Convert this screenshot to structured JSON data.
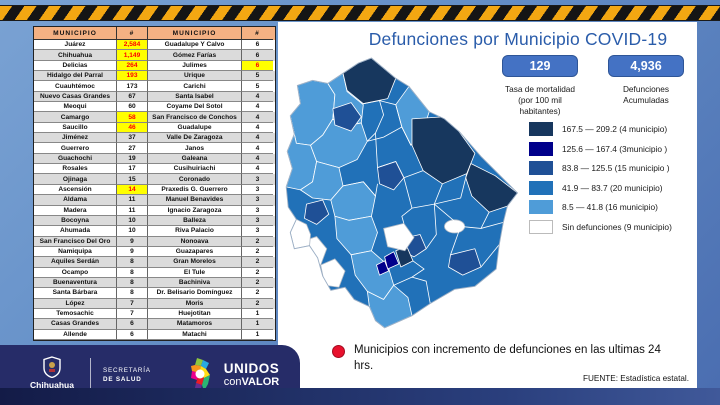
{
  "title": "Defunciones por Municipio COVID-19",
  "stats": {
    "mortality": {
      "value": "129",
      "label_line1": "Tasa de mortalidad",
      "label_line2": "(por 100 mil habitantes)"
    },
    "deaths": {
      "value": "4,936",
      "label_line1": "Defunciones",
      "label_line2": "Acumuladas"
    }
  },
  "legend": {
    "items": [
      {
        "label": "167.5 — 209.2 (4 municipio)",
        "color": "#17375E"
      },
      {
        "label": "125.6 — 167.4 (3municipio )",
        "color": "#00008B"
      },
      {
        "label": "83.8 — 125.5 (15 municipio )",
        "color": "#1F5096"
      },
      {
        "label": "41.9 — 83.7 (20 municipio)",
        "color": "#2171B8"
      },
      {
        "label": "8.5 — 41.8 (16 municipio)",
        "color": "#4F9CD8"
      },
      {
        "label": "Sin defunciones (9 municipio)",
        "color": "#FFFFFF"
      }
    ]
  },
  "map": {
    "name": "Chihuahua choropleth",
    "colors": {
      "band_167_209": "#17375E",
      "band_125_167": "#00008B",
      "band_83_125": "#1F5096",
      "band_41_83": "#2171B8",
      "band_8_41": "#4F9CD8",
      "sin_defunciones": "#FFFFFF"
    }
  },
  "table": {
    "headers": [
      "MUNICIPIO",
      "#",
      "MUNICIPIO",
      "#"
    ],
    "rows": [
      {
        "cells": [
          "Juárez",
          "2,584",
          "Guadalupe Y Calvo",
          "6"
        ],
        "hl": [
          1
        ]
      },
      {
        "cells": [
          "Chihuahua",
          "1,149",
          "Gómez Farías",
          "6"
        ],
        "hl": [
          1
        ]
      },
      {
        "cells": [
          "Delicias",
          "264",
          "Julimes",
          "6"
        ],
        "hl": [
          1,
          3
        ]
      },
      {
        "cells": [
          "Hidalgo del Parral",
          "193",
          "Urique",
          "5"
        ],
        "hl": [
          1
        ]
      },
      {
        "cells": [
          "Cuauhtémoc",
          "173",
          "Carichi",
          "5"
        ],
        "hl": []
      },
      {
        "cells": [
          "Nuevo Casas Grandes",
          "67",
          "Santa Isabel",
          "4"
        ],
        "hl": []
      },
      {
        "cells": [
          "Meoqui",
          "60",
          "Coyame Del Sotol",
          "4"
        ],
        "hl": []
      },
      {
        "cells": [
          "Camargo",
          "58",
          "San Francisco de Conchos",
          "4"
        ],
        "hl": [
          1
        ]
      },
      {
        "cells": [
          "Saucillo",
          "46",
          "Guadalupe",
          "4"
        ],
        "hl": [
          1
        ]
      },
      {
        "cells": [
          "Jiménez",
          "37",
          "Valle De Zaragoza",
          "4"
        ],
        "hl": []
      },
      {
        "cells": [
          "Guerrero",
          "27",
          "Janos",
          "4"
        ],
        "hl": []
      },
      {
        "cells": [
          "Guachochi",
          "19",
          "Galeana",
          "4"
        ],
        "hl": []
      },
      {
        "cells": [
          "Rosales",
          "17",
          "Cusihuiriachi",
          "4"
        ],
        "hl": []
      },
      {
        "cells": [
          "Ojinaga",
          "15",
          "Coronado",
          "3"
        ],
        "hl": []
      },
      {
        "cells": [
          "Ascensión",
          "14",
          "Praxedis G. Guerrero",
          "3"
        ],
        "hl": [
          1
        ]
      },
      {
        "cells": [
          "Aldama",
          "11",
          "Manuel Benavides",
          "3"
        ],
        "hl": []
      },
      {
        "cells": [
          "Madera",
          "11",
          "Ignacio Zaragoza",
          "3"
        ],
        "hl": []
      },
      {
        "cells": [
          "Bocoyna",
          "10",
          "Balleza",
          "3"
        ],
        "hl": []
      },
      {
        "cells": [
          "Ahumada",
          "10",
          "Riva Palacio",
          "3"
        ],
        "hl": []
      },
      {
        "cells": [
          "San Francisco Del Oro",
          "9",
          "Nonoava",
          "2"
        ],
        "hl": []
      },
      {
        "cells": [
          "Namiquipa",
          "9",
          "Guazapares",
          "2"
        ],
        "hl": []
      },
      {
        "cells": [
          "Aquiles Serdán",
          "8",
          "Gran Morelos",
          "2"
        ],
        "hl": []
      },
      {
        "cells": [
          "Ocampo",
          "8",
          "El Tule",
          "2"
        ],
        "hl": []
      },
      {
        "cells": [
          "Buenaventura",
          "8",
          "Bachiniva",
          "2"
        ],
        "hl": []
      },
      {
        "cells": [
          "Santa Bárbara",
          "8",
          "Dr. Belisario Domínguez",
          "2"
        ],
        "hl": []
      },
      {
        "cells": [
          "López",
          "7",
          "Moris",
          "2"
        ],
        "hl": []
      },
      {
        "cells": [
          "Temosachic",
          "7",
          "Huejotitan",
          "1"
        ],
        "hl": []
      },
      {
        "cells": [
          "Casas Grandes",
          "6",
          "Matamoros",
          "1"
        ],
        "hl": []
      },
      {
        "cells": [
          "Allende",
          "6",
          "Matachi",
          "1"
        ],
        "hl": []
      }
    ]
  },
  "footnote": {
    "text": "Municipios con incremento de defunciones en las ultimas 24 hrs.",
    "marker_color": "#E8112D"
  },
  "source": "FUENTE: Estadística estatal.",
  "branding": {
    "state_name": "Chihuahua",
    "state_sub": "GOBIERNO DEL ESTADO",
    "secretaria_line1": "SECRETARÍA",
    "secretaria_line2": "DE SALUD",
    "unidos_line1": "UNIDOS",
    "unidos_con": "con",
    "unidos_valor": "VALOR"
  },
  "colors": {
    "title_blue": "#2A5CAA",
    "stat_box_fill": "#4472C4",
    "stat_box_border": "#2E5597",
    "table_header_bg": "#F4B183",
    "table_header_text": "#FF0000",
    "highlight_bg": "#FFFF00",
    "highlight_text": "#FF0000",
    "hazard_yellow": "#F3A712",
    "footer_navy": "#262C68"
  }
}
